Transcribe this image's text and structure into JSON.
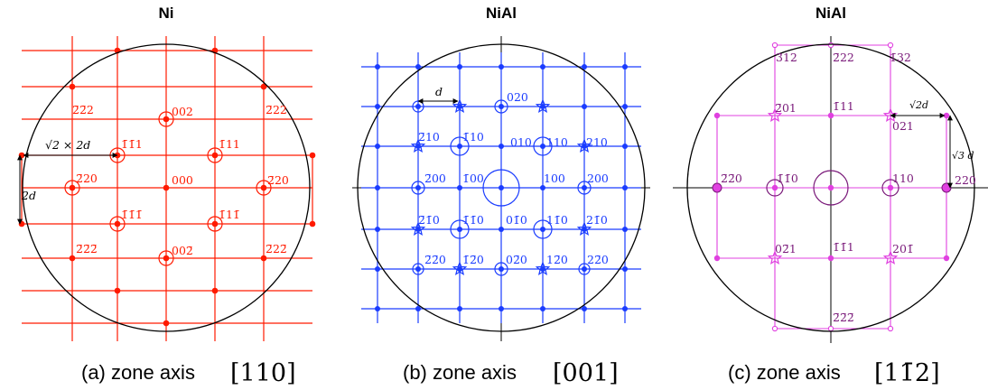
{
  "panels": [
    {
      "title": "Ni",
      "caption": "(a) zone axis ",
      "zone_axis": "[110]",
      "color": "#ff1a00",
      "spot_labels": [
        "002",
        "2̄2̄2",
        "2̄22",
        "1̄1̄1",
        "1̄11",
        "2̄20",
        "000",
        "2̄20",
        "1̄1̄1̄",
        "1̄11̄",
        "2̄2̄2̄",
        "2̄22̄",
        "002̄"
      ],
      "spacing_labels": {
        "row": "√2 × 2d",
        "col": "2d"
      }
    },
    {
      "title": "NiAl",
      "caption": "(b) zone axis ",
      "zone_axis": "[001]",
      "color": "#1a3cff",
      "spot_labels": [
        "020",
        "2̄10",
        "1̄10",
        "010",
        "110",
        "210",
        "2̄00",
        "1̄00",
        "100",
        "200",
        "2̄1̄0",
        "1̄1̄0",
        "01̄0",
        "11̄0",
        "21̄0",
        "2̄2̄0",
        "1̄2̄0",
        "02̄0",
        "12̄0",
        "22̄0"
      ],
      "spacing_labels": {
        "row": "d"
      }
    },
    {
      "title": "NiAl",
      "caption": "(c) zone axis ",
      "zone_axis": "[11̄2]",
      "color": "#e040e0",
      "label_color": "#7a1a7a",
      "spot_labels": [
        "3̄12",
        "2̄22",
        "1̄32",
        "2̄01",
        "1̄11",
        "021",
        "2̄2̄0",
        "1̄1̄0",
        "110",
        "220",
        "02̄1",
        "1̄1̄1",
        "201̄",
        "2̄2̄2̄"
      ],
      "spacing_labels": {
        "row": "√2d",
        "col": "√3 d"
      }
    }
  ]
}
